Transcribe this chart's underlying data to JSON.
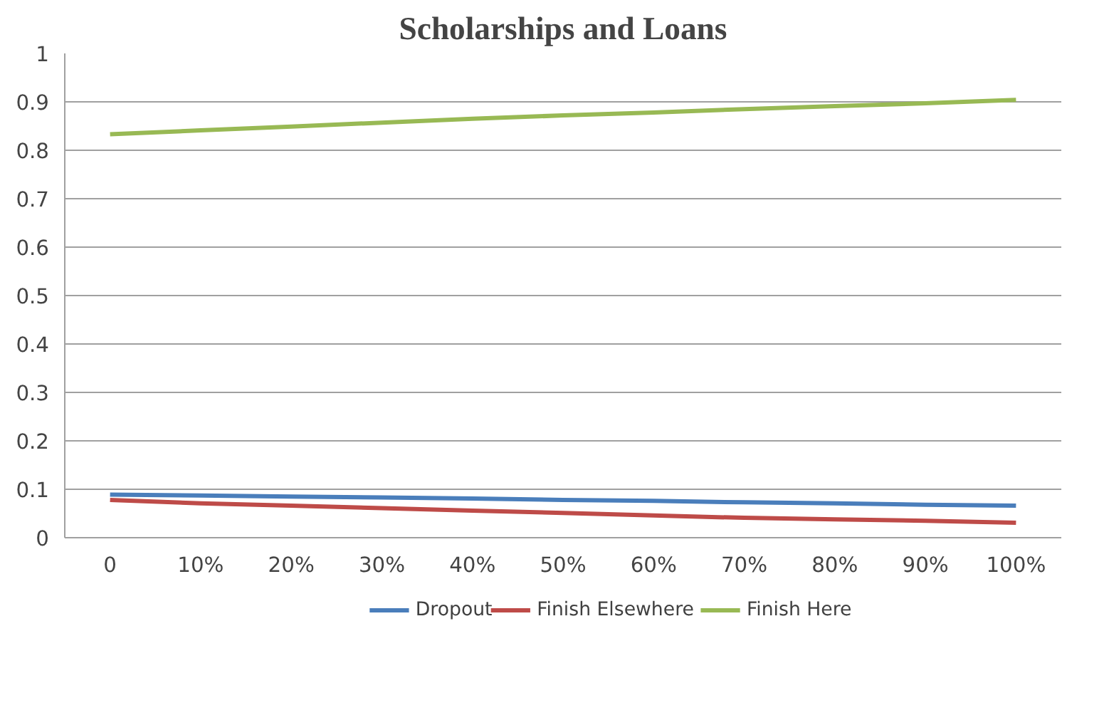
{
  "chart_data": {
    "type": "line",
    "title": "Scholarships and Loans",
    "categories": [
      "0",
      "10%",
      "20%",
      "30%",
      "40%",
      "50%",
      "60%",
      "70%",
      "80%",
      "90%",
      "100%"
    ],
    "series": [
      {
        "name": "Dropout",
        "color": "#4a7ebb",
        "values": [
          0.089,
          0.087,
          0.085,
          0.083,
          0.081,
          0.078,
          0.076,
          0.073,
          0.071,
          0.068,
          0.066
        ]
      },
      {
        "name": "Finish Elsewhere",
        "color": "#be4b48",
        "values": [
          0.078,
          0.071,
          0.066,
          0.061,
          0.056,
          0.051,
          0.046,
          0.041,
          0.038,
          0.035,
          0.031
        ]
      },
      {
        "name": "Finish Here",
        "color": "#98b954",
        "values": [
          0.833,
          0.841,
          0.849,
          0.857,
          0.865,
          0.872,
          0.878,
          0.885,
          0.891,
          0.897,
          0.904
        ]
      }
    ],
    "ylim": [
      0,
      1
    ],
    "yticks": [
      0,
      0.1,
      0.2,
      0.3,
      0.4,
      0.5,
      0.6,
      0.7,
      0.8,
      0.9,
      1
    ],
    "grid": "y",
    "legend": "bottom",
    "marker": "none",
    "line_style": "solid"
  }
}
